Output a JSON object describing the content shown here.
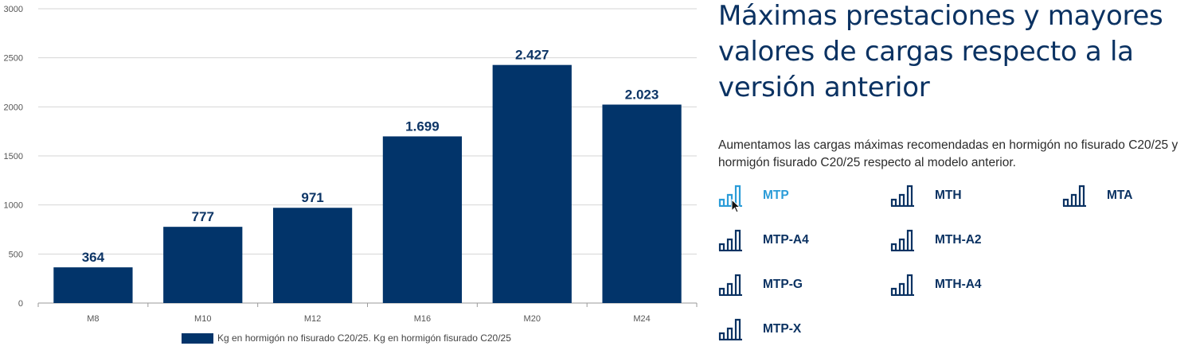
{
  "chart_data": {
    "type": "bar",
    "categories": [
      "M8",
      "M10",
      "M12",
      "M16",
      "M20",
      "M24"
    ],
    "values": [
      364,
      777,
      971,
      1699,
      2427,
      2023
    ],
    "value_labels": [
      "364",
      "777",
      "971",
      "1.699",
      "2.427",
      "2.023"
    ],
    "y_ticks": [
      "0",
      "500",
      "1000",
      "1500",
      "2000",
      "2500",
      "3000"
    ],
    "ylim": [
      0,
      3000
    ],
    "grid": true,
    "legend": "bottom",
    "series": [
      {
        "name": "Kg en hormigón no fisurado C20/25. Kg en hormigón fisurado C20/25",
        "values": [
          364,
          777,
          971,
          1699,
          2427,
          2023
        ]
      }
    ],
    "bar_color": "#02346a",
    "label_color": "#0d3566"
  },
  "title": "Máximas prestaciones y mayores valores de cargas respecto a la versión anterior",
  "description": "Aumentamos las cargas máximas recomendadas en hormigón no fisurado C20/25 y hormigón fisurado C20/25 respecto al modelo anterior.",
  "products": [
    {
      "label": "MTP",
      "active": true,
      "icon": "bar-chart-icon"
    },
    {
      "label": "MTH",
      "active": false,
      "icon": "bar-chart-icon"
    },
    {
      "label": "MTA",
      "active": false,
      "icon": "bar-chart-icon"
    },
    {
      "label": "MTP-A4",
      "active": false,
      "icon": "bar-chart-icon"
    },
    {
      "label": "MTH-A2",
      "active": false,
      "icon": "bar-chart-icon"
    },
    {
      "label": "MTP-G",
      "active": false,
      "icon": "bar-chart-icon"
    },
    {
      "label": "MTH-A4",
      "active": false,
      "icon": "bar-chart-icon"
    },
    {
      "label": "MTP-X",
      "active": false,
      "icon": "bar-chart-icon"
    }
  ],
  "colors": {
    "primary": "#0b3262",
    "active": "#2b9cd8"
  }
}
